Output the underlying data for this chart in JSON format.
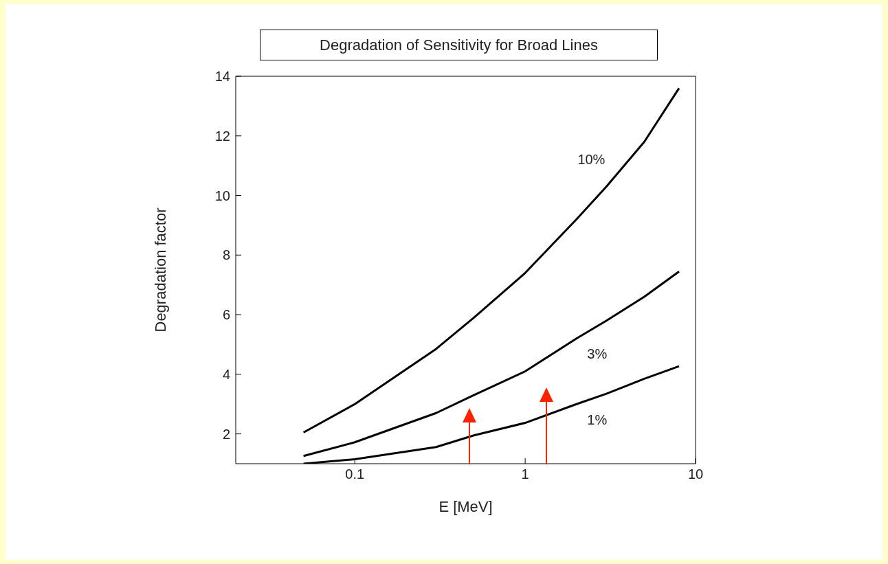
{
  "chart_data": {
    "type": "line",
    "title": "Degradation of Sensitivity for Broad Lines",
    "xlabel": "E  [MeV]",
    "ylabel": "Degradation factor",
    "log": "x",
    "xlim": [
      0.02,
      10
    ],
    "xticks": [
      0.1,
      1,
      10
    ],
    "ylim": [
      1,
      14
    ],
    "yticks": [
      2,
      4,
      6,
      8,
      10,
      12,
      14
    ],
    "marker": "none",
    "line_style": "solid",
    "x": [
      0.05,
      0.1,
      0.3,
      0.5,
      1,
      2,
      3,
      5,
      8
    ],
    "series": [
      {
        "name": "1%",
        "color": "#000000",
        "values": [
          1.0,
          1.15,
          1.56,
          1.95,
          2.37,
          3.0,
          3.35,
          3.85,
          4.27
        ]
      },
      {
        "name": "3%",
        "color": "#000000",
        "values": [
          1.26,
          1.72,
          2.7,
          3.3,
          4.1,
          5.2,
          5.8,
          6.6,
          7.45
        ]
      },
      {
        "name": "10%",
        "color": "#000000",
        "values": [
          2.05,
          3.0,
          4.85,
          5.9,
          7.4,
          9.2,
          10.3,
          11.8,
          13.6
        ]
      }
    ]
  }
}
